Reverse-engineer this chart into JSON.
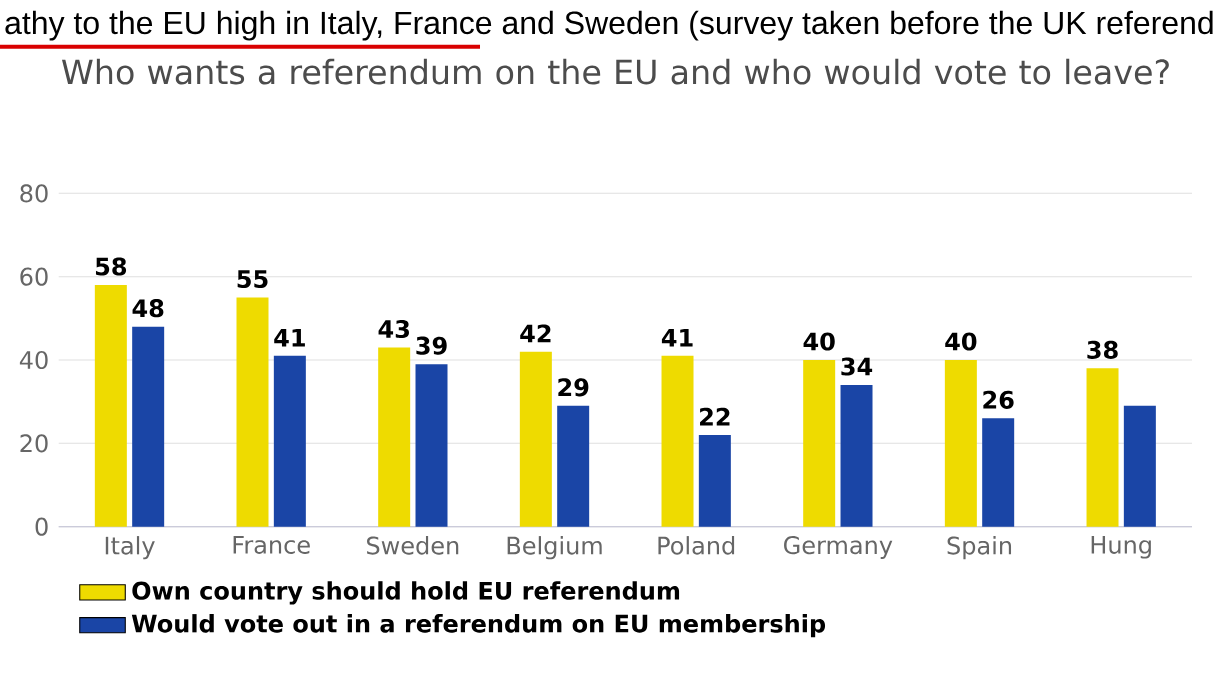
{
  "chart_data": {
    "type": "bar",
    "title": "athy to the EU high in Italy, France and Sweden (survey taken before the UK referend",
    "subtitle": "Who wants a referendum on the EU and who would vote to leave?",
    "categories": [
      "Italy",
      "France",
      "Sweden",
      "Belgium",
      "Poland",
      "Germany",
      "Spain",
      "Hung"
    ],
    "series": [
      {
        "name": "Own country should hold EU referendum",
        "color": "#eedb00",
        "values": [
          58,
          55,
          43,
          42,
          41,
          40,
          40,
          38
        ],
        "value_labels": [
          "58",
          "55",
          "43",
          "42",
          "41",
          "40",
          "40",
          "38"
        ]
      },
      {
        "name": "Would vote out in a referendum on EU membership",
        "color": "#1a45a6",
        "values": [
          48,
          41,
          39,
          29,
          22,
          34,
          26,
          29
        ],
        "value_labels": [
          "48",
          "41",
          "39",
          "29",
          "22",
          "34",
          "26",
          null
        ]
      }
    ],
    "ylim": [
      0,
      80
    ],
    "yticks": [
      0,
      20,
      40,
      60,
      80
    ],
    "grid": "y",
    "legend": "bottom"
  }
}
